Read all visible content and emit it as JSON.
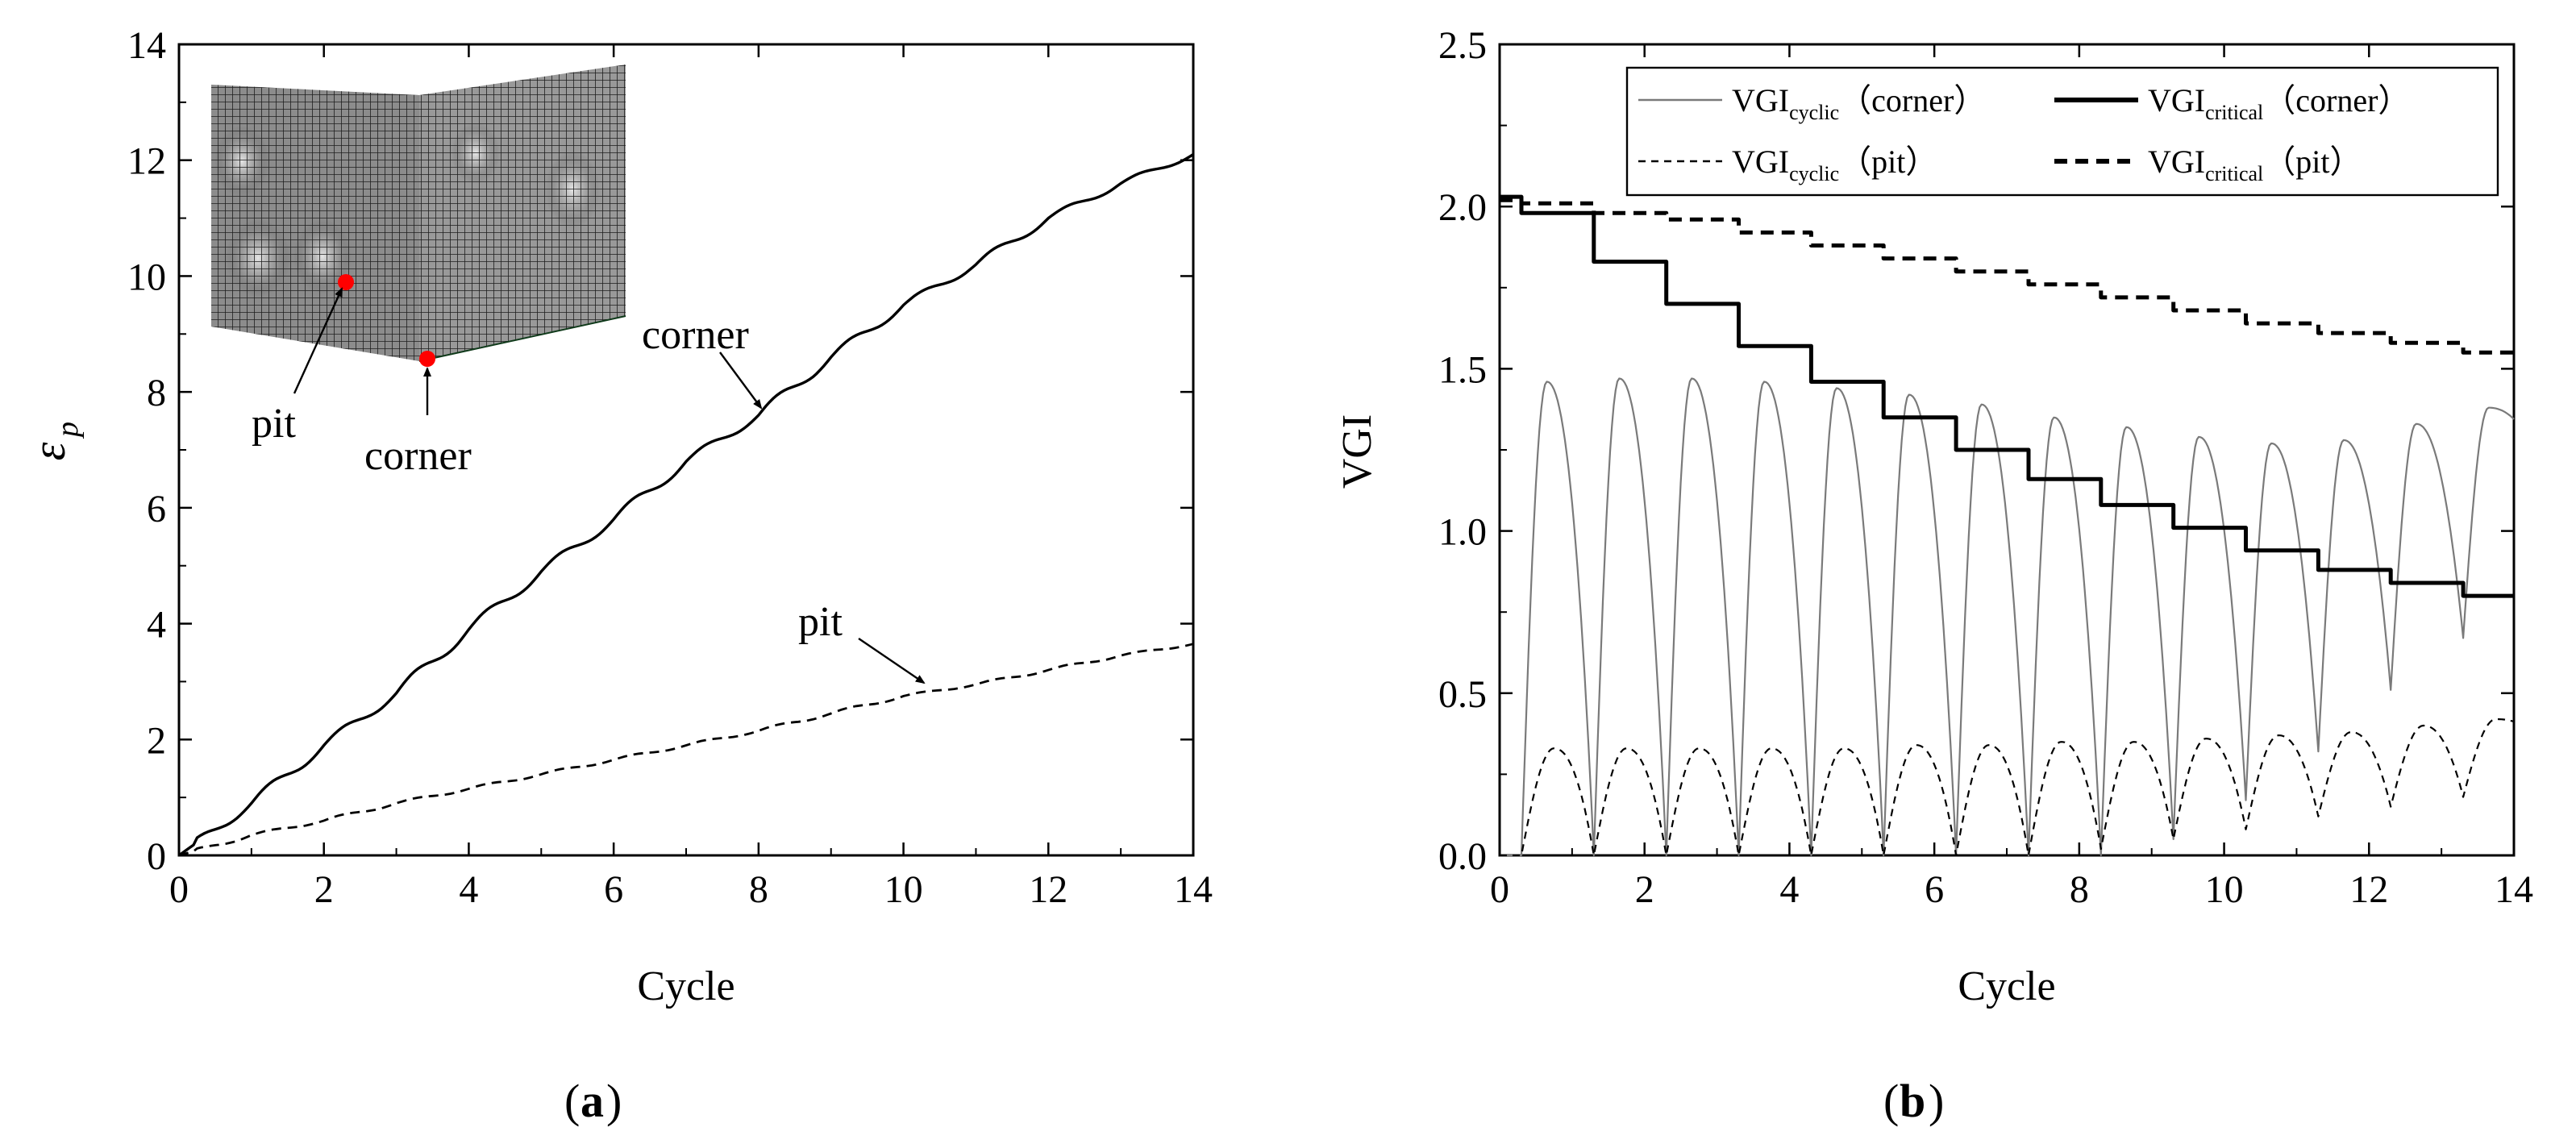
{
  "panels": [
    {
      "id": "a",
      "label": "a",
      "chart_data": {
        "type": "line",
        "xlabel": "Cycle",
        "ylabel": "ε",
        "ylabel_sub": "p",
        "xlim": [
          0,
          14
        ],
        "ylim": [
          0,
          14
        ],
        "xticks": [
          0,
          2,
          4,
          6,
          8,
          10,
          12,
          14
        ],
        "yticks": [
          0,
          2,
          4,
          6,
          8,
          10,
          12,
          14
        ],
        "grid": false,
        "series": [
          {
            "name": "corner",
            "style": "solid",
            "x": [
              0,
              1,
              2,
              3,
              4,
              5,
              6,
              7,
              8,
              9,
              10,
              11,
              12,
              13,
              14
            ],
            "y": [
              0,
              0.9,
              1.9,
              2.8,
              3.9,
              4.9,
              5.8,
              6.8,
              7.6,
              8.6,
              9.5,
              10.2,
              11.0,
              11.6,
              12.1
            ]
          },
          {
            "name": "pit",
            "style": "dashed",
            "x": [
              0,
              1,
              2,
              3,
              4,
              5,
              6,
              7,
              8,
              9,
              10,
              11,
              12,
              13,
              14
            ],
            "y": [
              0,
              0.35,
              0.6,
              0.9,
              1.15,
              1.4,
              1.65,
              1.9,
              2.15,
              2.45,
              2.75,
              2.95,
              3.2,
              3.45,
              3.65
            ]
          }
        ],
        "annotations": [
          {
            "text": "corner",
            "target": [
              8.1,
              7.7
            ]
          },
          {
            "text": "pit",
            "target": [
              10.2,
              2.85
            ]
          }
        ],
        "inset": {
          "labels": [
            "pit",
            "corner"
          ],
          "marker_color": "#ff0000"
        }
      }
    },
    {
      "id": "b",
      "label": "b",
      "chart_data": {
        "type": "line",
        "xlabel": "Cycle",
        "ylabel": "VGI",
        "xlim": [
          0,
          14
        ],
        "ylim": [
          0,
          2.5
        ],
        "xticks": [
          0,
          2,
          4,
          6,
          8,
          10,
          12,
          14
        ],
        "yticks": [
          0.0,
          0.5,
          1.0,
          1.5,
          2.0,
          2.5
        ],
        "grid": false,
        "legend_position": "top",
        "series": [
          {
            "name_main": "VGI",
            "name_sub": "cyclic",
            "name_suffix": "（corner）",
            "style": "thin-solid",
            "color": "#7a7a7a",
            "peaks": [
              1.46,
              1.47,
              1.47,
              1.46,
              1.44,
              1.42,
              1.39,
              1.35,
              1.32,
              1.29,
              1.27,
              1.28,
              1.33,
              1.38
            ],
            "troughs": [
              0,
              0,
              0,
              0,
              0,
              0,
              0,
              0,
              0.05,
              0.17,
              0.32,
              0.51,
              0.67
            ]
          },
          {
            "name_main": "VGI",
            "name_sub": "critical",
            "name_suffix": "（corner）",
            "style": "thick-solid",
            "color": "#000000",
            "x": [
              0,
              0.3,
              1.3,
              2.3,
              3.3,
              4.3,
              5.3,
              6.3,
              7.3,
              8.3,
              9.3,
              10.3,
              11.3,
              12.3,
              13.3,
              14
            ],
            "y": [
              2.03,
              1.98,
              1.83,
              1.7,
              1.57,
              1.46,
              1.35,
              1.25,
              1.16,
              1.08,
              1.01,
              0.94,
              0.88,
              0.84,
              0.8,
              0.8
            ]
          },
          {
            "name_main": "VGI",
            "name_sub": "cyclic",
            "name_suffix": "（pit）",
            "style": "dashed",
            "color": "#000000",
            "peaks": [
              0.33,
              0.33,
              0.33,
              0.33,
              0.33,
              0.34,
              0.34,
              0.35,
              0.35,
              0.36,
              0.37,
              0.38,
              0.4,
              0.42
            ],
            "troughs": [
              0,
              0,
              0,
              0,
              0,
              0,
              0,
              0.02,
              0.05,
              0.08,
              0.12,
              0.15,
              0.18
            ]
          },
          {
            "name_main": "VGI",
            "name_sub": "critical",
            "name_suffix": "（pit）",
            "style": "thick-dashed",
            "color": "#000000",
            "x": [
              0,
              0.3,
              1.3,
              2.3,
              3.3,
              4.3,
              5.3,
              6.3,
              7.3,
              8.3,
              9.3,
              10.3,
              11.3,
              12.3,
              13.3,
              14
            ],
            "y": [
              2.02,
              2.01,
              1.98,
              1.96,
              1.92,
              1.88,
              1.84,
              1.8,
              1.76,
              1.72,
              1.68,
              1.64,
              1.61,
              1.58,
              1.55,
              1.53
            ]
          }
        ]
      }
    }
  ]
}
